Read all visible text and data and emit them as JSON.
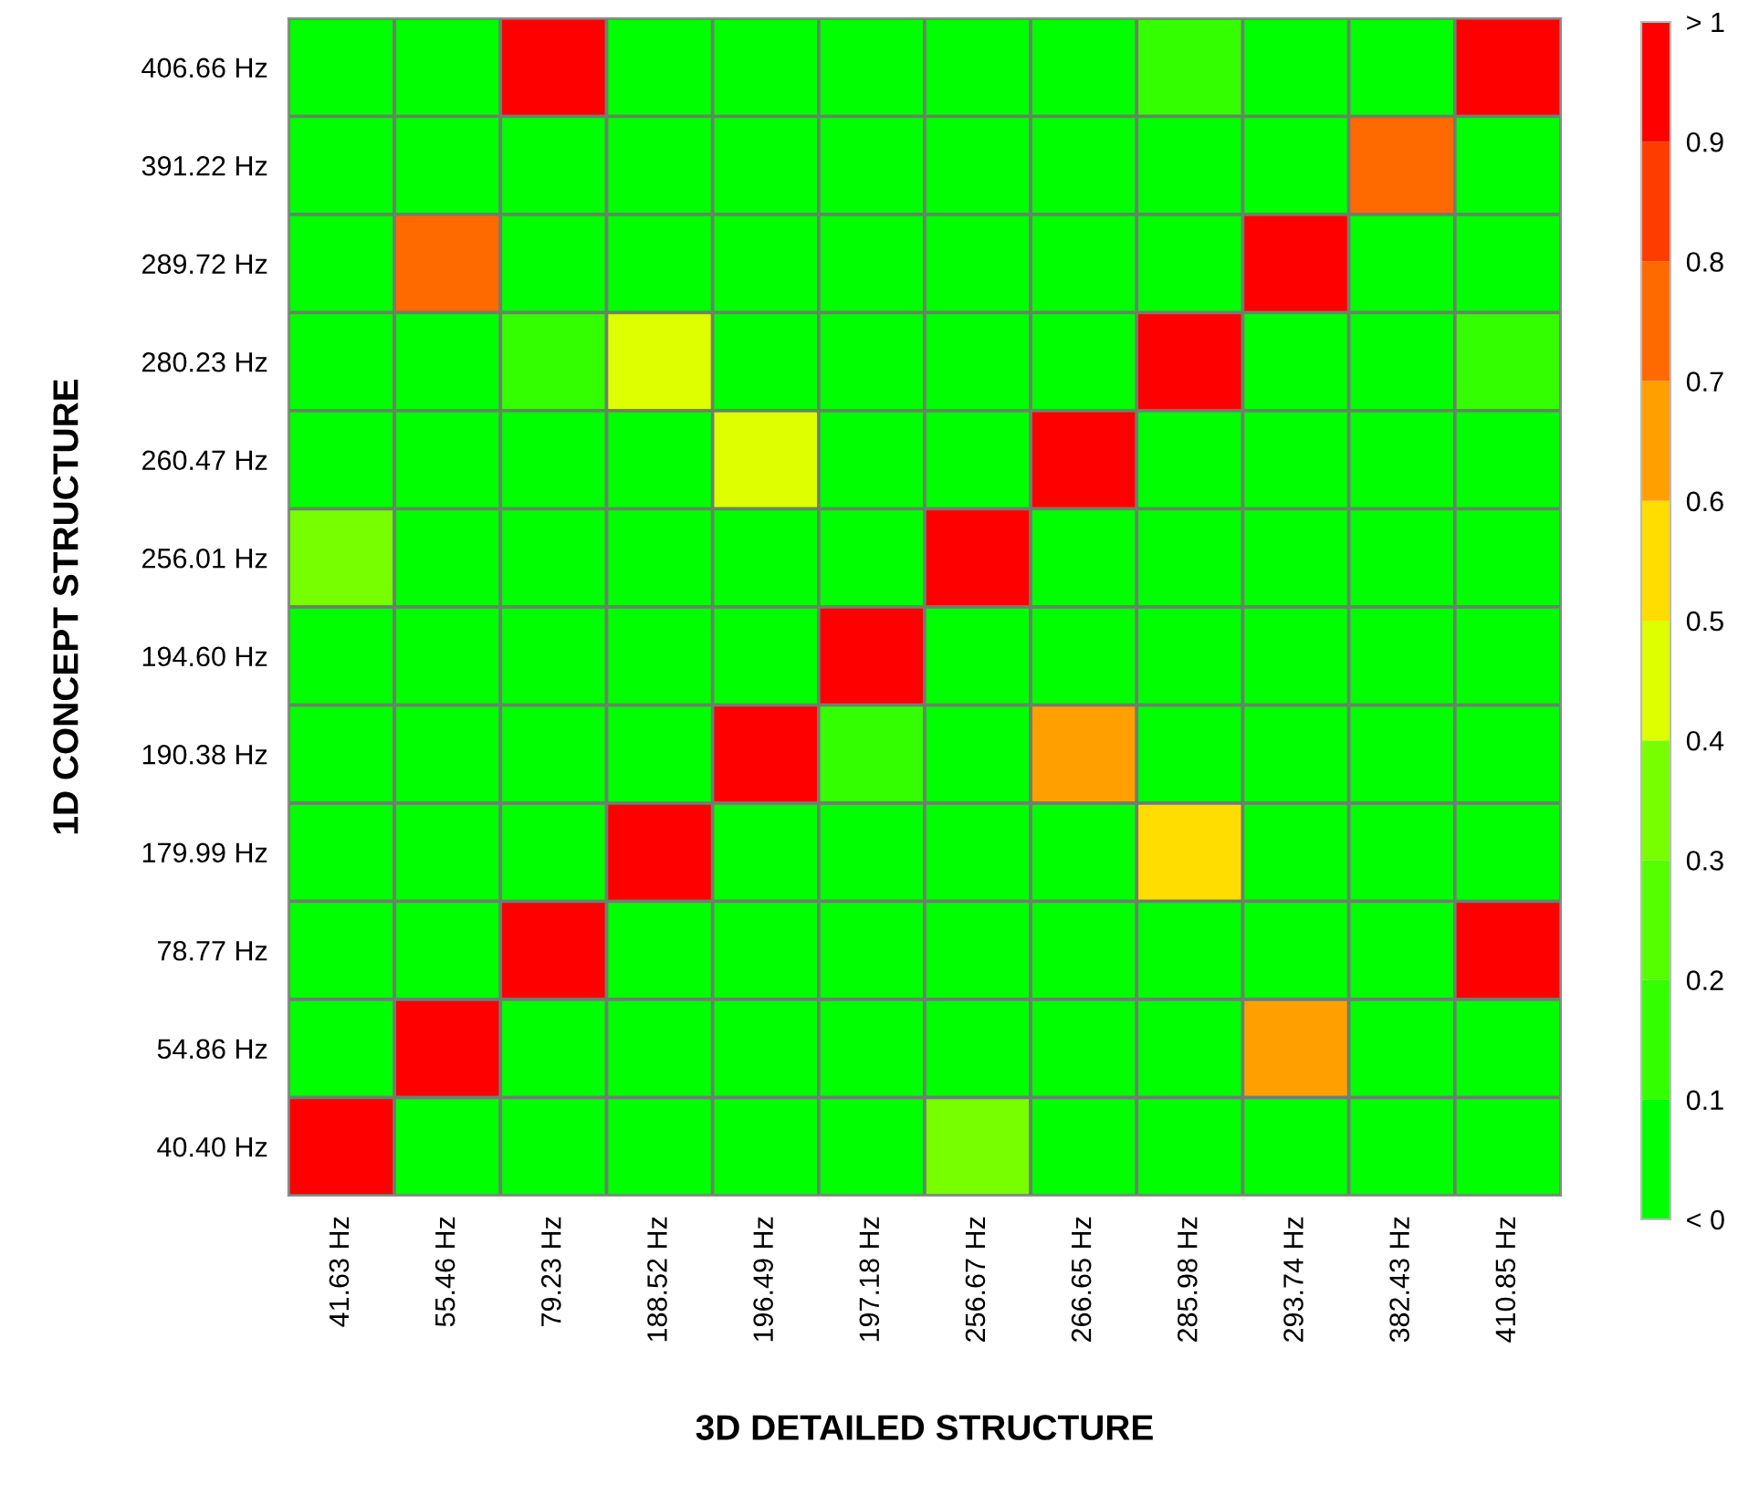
{
  "chart_data": {
    "type": "heatmap",
    "xlabel": "3D DETAILED STRUCTURE",
    "ylabel": "1D CONCEPT STRUCTURE",
    "categories": [
      "41.63 Hz",
      "55.46 Hz",
      "79.23 Hz",
      "188.52 Hz",
      "196.49 Hz",
      "197.18 Hz",
      "256.67 Hz",
      "266.65 Hz",
      "285.98 Hz",
      "293.74 Hz",
      "382.43 Hz",
      "410.85 Hz"
    ],
    "y_categories": [
      "406.66 Hz",
      "391.22 Hz",
      "289.72 Hz",
      "280.23 Hz",
      "260.47 Hz",
      "256.01 Hz",
      "194.60 Hz",
      "190.38 Hz",
      "179.99 Hz",
      "78.77 Hz",
      "54.86 Hz",
      "40.40 Hz"
    ],
    "cells": [
      [
        0.05,
        0.05,
        0.95,
        0.05,
        0.05,
        0.05,
        0.05,
        0.05,
        0.15,
        0.05,
        0.05,
        0.95
      ],
      [
        0.05,
        0.05,
        0.05,
        0.05,
        0.05,
        0.05,
        0.05,
        0.05,
        0.05,
        0.05,
        0.75,
        0.05
      ],
      [
        0.05,
        0.75,
        0.05,
        0.05,
        0.05,
        0.05,
        0.05,
        0.05,
        0.05,
        0.95,
        0.05,
        0.05
      ],
      [
        0.05,
        0.05,
        0.15,
        0.45,
        0.05,
        0.05,
        0.05,
        0.05,
        0.95,
        0.05,
        0.05,
        0.15
      ],
      [
        0.05,
        0.05,
        0.05,
        0.05,
        0.45,
        0.05,
        0.05,
        0.95,
        0.05,
        0.05,
        0.05,
        0.05
      ],
      [
        0.35,
        0.05,
        0.05,
        0.05,
        0.05,
        0.05,
        0.95,
        0.05,
        0.05,
        0.05,
        0.05,
        0.05
      ],
      [
        0.05,
        0.05,
        0.05,
        0.05,
        0.05,
        0.95,
        0.05,
        0.05,
        0.05,
        0.05,
        0.05,
        0.05
      ],
      [
        0.05,
        0.05,
        0.05,
        0.05,
        0.95,
        0.15,
        0.05,
        0.65,
        0.05,
        0.05,
        0.05,
        0.05
      ],
      [
        0.05,
        0.05,
        0.05,
        0.95,
        0.05,
        0.05,
        0.05,
        0.05,
        0.55,
        0.05,
        0.05,
        0.05
      ],
      [
        0.05,
        0.05,
        0.95,
        0.05,
        0.05,
        0.05,
        0.05,
        0.05,
        0.05,
        0.05,
        0.05,
        0.95
      ],
      [
        0.05,
        0.95,
        0.05,
        0.05,
        0.05,
        0.05,
        0.05,
        0.05,
        0.05,
        0.65,
        0.05,
        0.05
      ],
      [
        0.95,
        0.05,
        0.05,
        0.05,
        0.05,
        0.05,
        0.35,
        0.05,
        0.05,
        0.05,
        0.05,
        0.05
      ]
    ],
    "clim": [
      0,
      1
    ],
    "cticks": [
      {
        "value": 0,
        "label": "< 0"
      },
      0.1,
      0.2,
      0.3,
      0.4,
      0.5,
      0.6,
      0.7,
      0.8,
      0.9,
      {
        "value": 1,
        "label": "> 1"
      }
    ]
  }
}
